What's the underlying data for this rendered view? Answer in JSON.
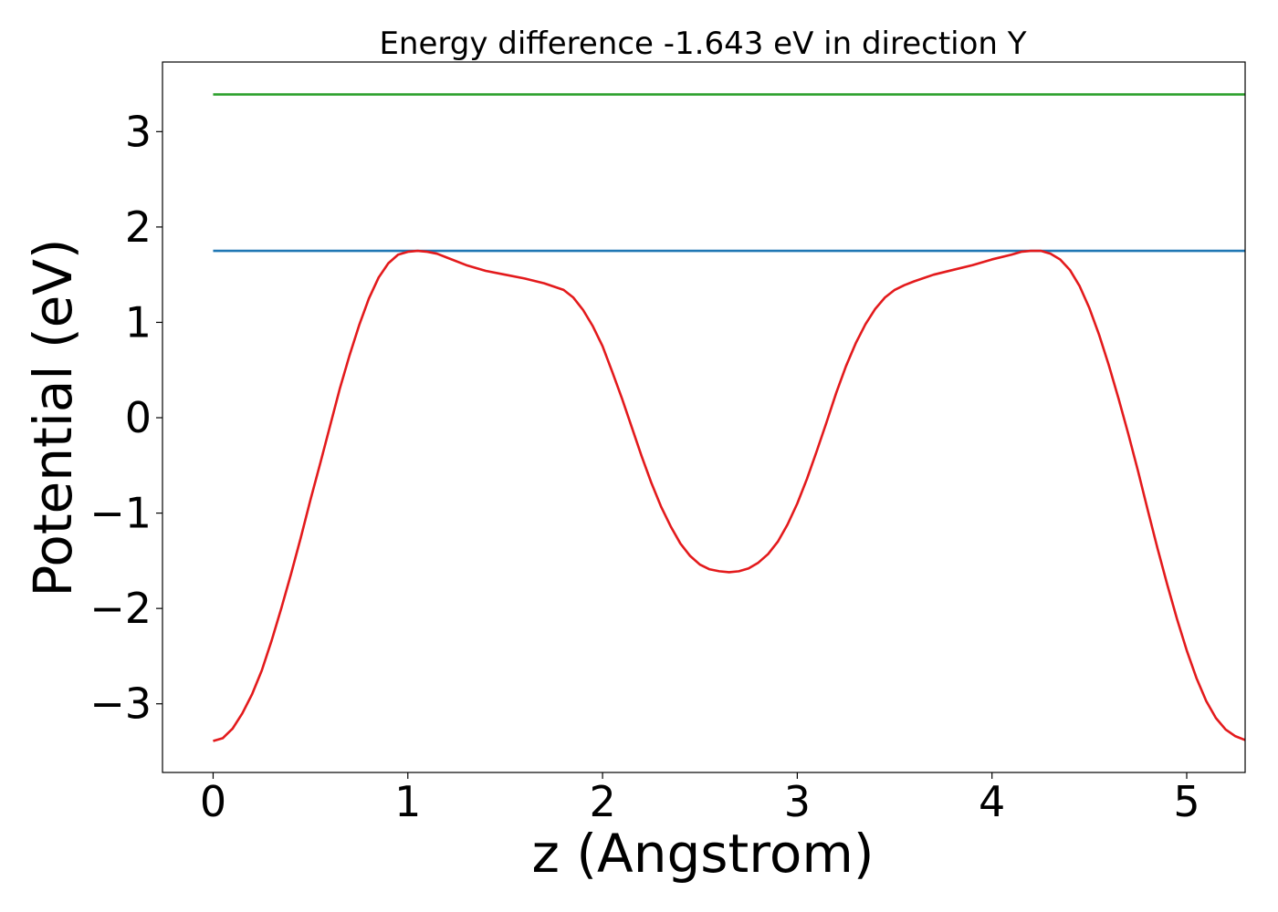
{
  "chart_data": {
    "type": "line",
    "title": "Energy difference -1.643 eV in direction Y",
    "xlabel": "z (Angstrom)",
    "ylabel": "Potential (eV)",
    "xlim": [
      -0.26,
      5.3
    ],
    "ylim": [
      -3.72,
      3.73
    ],
    "xticks": [
      0,
      1,
      2,
      3,
      4,
      5
    ],
    "xtick_labels": [
      "0",
      "1",
      "2",
      "3",
      "4",
      "5"
    ],
    "yticks": [
      -3,
      -2,
      -1,
      0,
      1,
      2,
      3
    ],
    "ytick_labels": [
      "−3",
      "−2",
      "−1",
      "0",
      "1",
      "2",
      "3"
    ],
    "grid": false,
    "series": [
      {
        "color": "#2ca02c",
        "x": [
          0,
          5.3
        ],
        "y": [
          3.39,
          3.39
        ]
      },
      {
        "color": "#1f77b4",
        "x": [
          0,
          5.3
        ],
        "y": [
          1.75,
          1.75
        ]
      },
      {
        "color": "#e31a1c",
        "x": [
          0,
          0.05,
          0.1,
          0.15,
          0.2,
          0.25,
          0.3,
          0.35,
          0.4,
          0.45,
          0.5,
          0.55,
          0.6,
          0.65,
          0.7,
          0.75,
          0.8,
          0.85,
          0.9,
          0.95,
          1.0,
          1.05,
          1.1,
          1.15,
          1.2,
          1.3,
          1.4,
          1.5,
          1.6,
          1.7,
          1.8,
          1.85,
          1.9,
          1.95,
          2.0,
          2.05,
          2.1,
          2.15,
          2.2,
          2.25,
          2.3,
          2.35,
          2.4,
          2.45,
          2.5,
          2.55,
          2.6,
          2.65,
          2.7,
          2.75,
          2.8,
          2.85,
          2.9,
          2.95,
          3.0,
          3.05,
          3.1,
          3.15,
          3.2,
          3.25,
          3.3,
          3.35,
          3.4,
          3.45,
          3.5,
          3.55,
          3.6,
          3.7,
          3.8,
          3.9,
          4.0,
          4.1,
          4.15,
          4.2,
          4.25,
          4.3,
          4.35,
          4.4,
          4.45,
          4.5,
          4.55,
          4.6,
          4.65,
          4.7,
          4.75,
          4.8,
          4.85,
          4.9,
          4.95,
          5.0,
          5.05,
          5.1,
          5.15,
          5.2,
          5.25,
          5.3
        ],
        "y": [
          -3.39,
          -3.36,
          -3.26,
          -3.1,
          -2.9,
          -2.65,
          -2.34,
          -2.0,
          -1.64,
          -1.26,
          -0.86,
          -0.48,
          -0.09,
          0.3,
          0.65,
          0.97,
          1.25,
          1.47,
          1.62,
          1.71,
          1.74,
          1.75,
          1.74,
          1.72,
          1.68,
          1.6,
          1.54,
          1.5,
          1.46,
          1.41,
          1.34,
          1.26,
          1.13,
          0.96,
          0.75,
          0.48,
          0.2,
          -0.1,
          -0.4,
          -0.68,
          -0.93,
          -1.14,
          -1.32,
          -1.45,
          -1.54,
          -1.59,
          -1.61,
          -1.62,
          -1.61,
          -1.58,
          -1.52,
          -1.43,
          -1.3,
          -1.12,
          -0.9,
          -0.64,
          -0.35,
          -0.05,
          0.26,
          0.54,
          0.78,
          0.98,
          1.14,
          1.26,
          1.34,
          1.39,
          1.43,
          1.5,
          1.55,
          1.6,
          1.66,
          1.71,
          1.74,
          1.75,
          1.75,
          1.72,
          1.66,
          1.55,
          1.38,
          1.15,
          0.87,
          0.55,
          0.2,
          -0.17,
          -0.56,
          -0.97,
          -1.37,
          -1.75,
          -2.11,
          -2.44,
          -2.73,
          -2.97,
          -3.15,
          -3.27,
          -3.34,
          -3.38
        ]
      }
    ]
  }
}
